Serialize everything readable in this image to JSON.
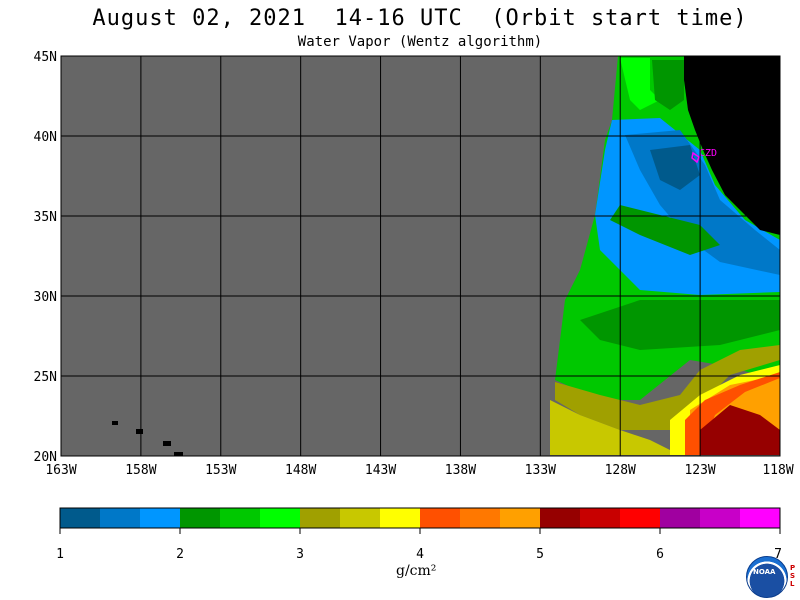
{
  "title": "August 02, 2021  14-16 UTC  (Orbit start time)",
  "subtitle": "Water Vapor (Wentz algorithm)",
  "map": {
    "lat_labels": [
      "45N",
      "40N",
      "35N",
      "30N",
      "25N",
      "20N"
    ],
    "lon_labels": [
      "163W",
      "158W",
      "153W",
      "148W",
      "143W",
      "138W",
      "133W",
      "128W",
      "123W",
      "118W"
    ],
    "station_label": "CZD",
    "colors": {
      "no_data": "#666666",
      "land": "#000000",
      "grid": "#000000",
      "station": "#ff00ff"
    }
  },
  "colorbar": {
    "colors": [
      "#005a8c",
      "#0078c8",
      "#0096ff",
      "#009600",
      "#00c800",
      "#00ff00",
      "#a0a000",
      "#c8c800",
      "#ffff00",
      "#ff5000",
      "#ff7800",
      "#ffa000",
      "#960000",
      "#c80000",
      "#ff0000",
      "#a000a0",
      "#c800c8",
      "#ff00ff"
    ],
    "tick_labels": [
      "1",
      "2",
      "3",
      "4",
      "5",
      "6",
      "7"
    ],
    "units_label": "g/cm²"
  },
  "logo": {
    "text": "NOAA",
    "side_text": "PSL"
  }
}
